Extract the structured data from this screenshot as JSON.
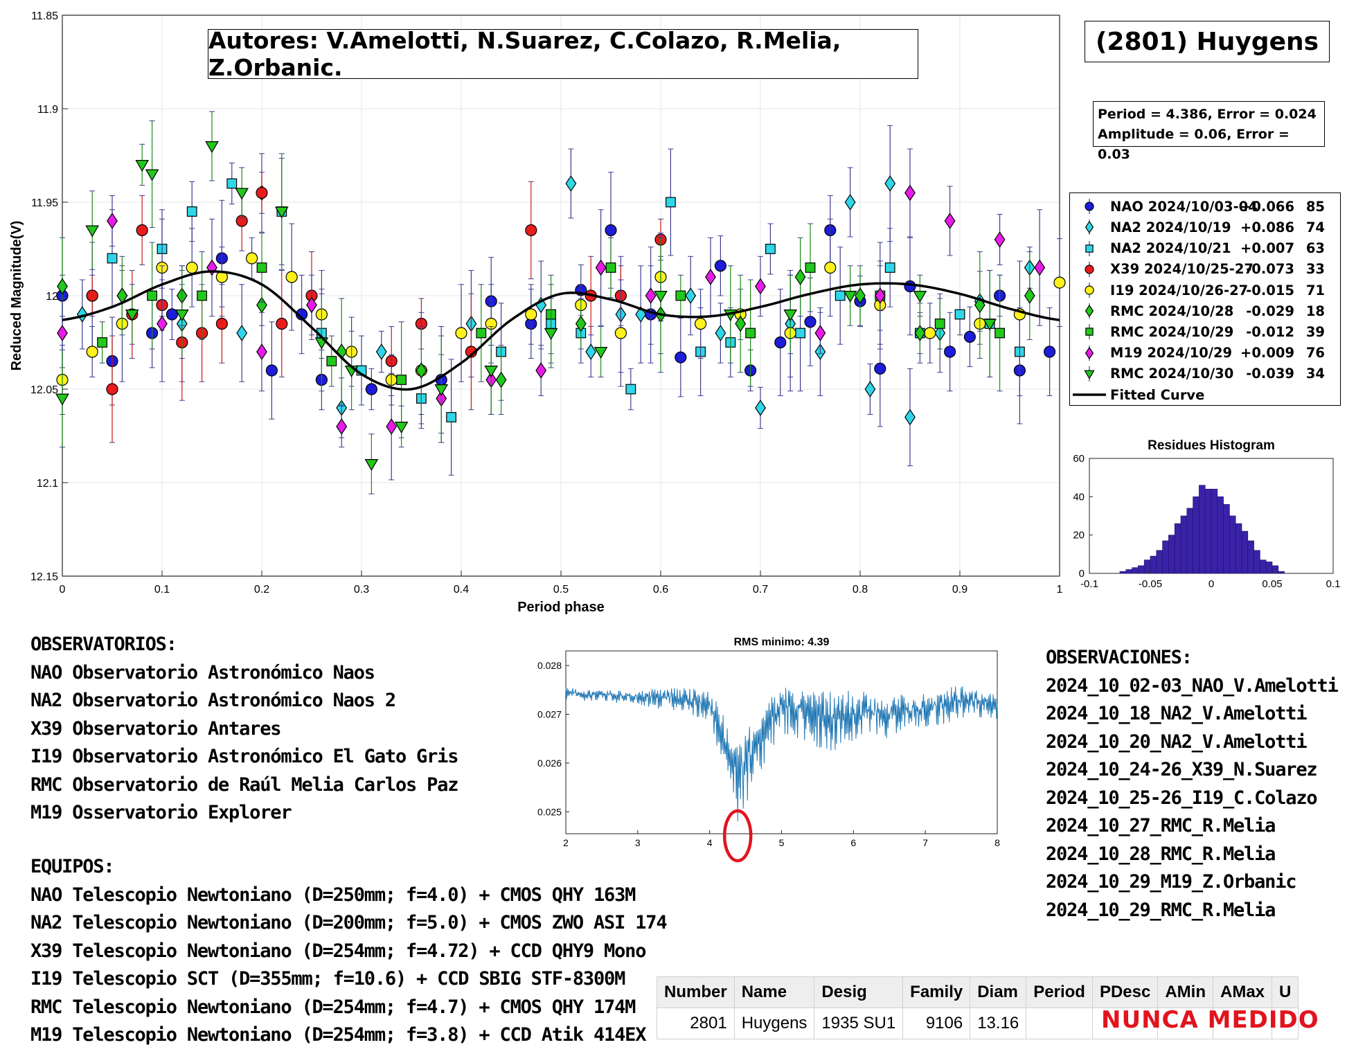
{
  "authors_text": "Autores: V.Amelotti, N.Suarez, C.Colazo, R.Melia, Z.Orbanic.",
  "asteroid_title": "(2801) Huygens",
  "params": {
    "period_line": "Period =  4.386, Error = 0.024",
    "amplitude_line": "Amplitude = 0.06, Error = 0.03"
  },
  "colors": {
    "NAO": "#1c1cd9",
    "NA2a": "#2fd6e8",
    "NA2b": "#2fd6e8",
    "X39": "#e81c1c",
    "I19": "#fff21c",
    "RMC28": "#22c81c",
    "RMC29": "#22c81c",
    "M19": "#e81ce8",
    "RMC30": "#22c81c",
    "curve": "#000000",
    "hist": "#3a22a8",
    "periodogram": "#1f77b4",
    "circle": "#e1141e",
    "never": "#e1141e"
  },
  "legend": [
    {
      "key": "NAO",
      "marker": "circle",
      "name": "NAO 2024/10/03-04",
      "offset": "+0.066",
      "n": "85"
    },
    {
      "key": "NA2a",
      "marker": "diamond",
      "name": "NA2 2024/10/19",
      "offset": "+0.086",
      "n": "74"
    },
    {
      "key": "NA2b",
      "marker": "square",
      "name": "NA2 2024/10/21",
      "offset": "+0.007",
      "n": "63"
    },
    {
      "key": "X39",
      "marker": "circle",
      "name": "X39 2024/10/25-27",
      "offset": "-0.073",
      "n": "33"
    },
    {
      "key": "I19",
      "marker": "circle",
      "name": "I19 2024/10/26-27",
      "offset": "-0.015",
      "n": "71"
    },
    {
      "key": "RMC28",
      "marker": "diamond",
      "name": "RMC 2024/10/28",
      "offset": "-0.029",
      "n": "18"
    },
    {
      "key": "RMC29",
      "marker": "square",
      "name": "RMC 2024/10/29",
      "offset": "-0.012",
      "n": "39"
    },
    {
      "key": "M19",
      "marker": "diamond",
      "name": "M19 2024/10/29",
      "offset": "+0.009",
      "n": "76"
    },
    {
      "key": "RMC30",
      "marker": "triangle",
      "name": "RMC 2024/10/30",
      "offset": "-0.039",
      "n": "34"
    },
    {
      "key": "curve",
      "marker": "line",
      "name": "Fitted Curve",
      "offset": "",
      "n": ""
    }
  ],
  "chart_data": [
    {
      "type": "scatter",
      "title": "",
      "xlabel": "Period phase",
      "ylabel": "Reduced Magnitude(V)",
      "xlim": [
        0,
        1
      ],
      "ylim": [
        11.85,
        12.15
      ],
      "y_reversed": true,
      "grid": true,
      "legend_position": "right",
      "xticks": [
        "0",
        "0.1",
        "0.2",
        "0.3",
        "0.4",
        "0.5",
        "0.6",
        "0.7",
        "0.8",
        "0.9",
        "1"
      ],
      "yticks": [
        "11.85",
        "11.9",
        "11.95",
        "12",
        "12.05",
        "12.1",
        "12.15"
      ],
      "fitted_curve": {
        "name": "Fitted Curve",
        "x": [
          0,
          0.05,
          0.1,
          0.15,
          0.2,
          0.25,
          0.3,
          0.35,
          0.4,
          0.45,
          0.5,
          0.55,
          0.6,
          0.65,
          0.7,
          0.75,
          0.8,
          0.85,
          0.9,
          0.95,
          1
        ],
        "y": [
          12.013,
          12.006,
          11.994,
          11.987,
          11.994,
          12.017,
          12.042,
          12.05,
          12.036,
          12.013,
          11.999,
          12.002,
          12.01,
          12.011,
          12.006,
          11.999,
          11.994,
          11.994,
          11.999,
          12.007,
          12.013
        ]
      },
      "series": [
        {
          "name": "NAO 2024/10/03-04",
          "key": "NAO",
          "marker": "circle",
          "x": [
            0.0,
            0.03,
            0.05,
            0.09,
            0.11,
            0.16,
            0.21,
            0.24,
            0.26,
            0.31,
            0.38,
            0.43,
            0.47,
            0.52,
            0.55,
            0.59,
            0.62,
            0.66,
            0.69,
            0.72,
            0.75,
            0.77,
            0.8,
            0.82,
            0.85,
            0.89,
            0.91,
            0.94,
            0.96,
            0.99
          ],
          "y": [
            12.0,
            12.0,
            12.035,
            12.02,
            12.01,
            11.98,
            12.04,
            12.01,
            12.045,
            12.05,
            12.045,
            12.003,
            12.015,
            11.997,
            11.965,
            12.01,
            12.033,
            11.984,
            12.04,
            12.025,
            12.014,
            11.965,
            12.003,
            12.039,
            11.995,
            12.03,
            12.022,
            12.0,
            12.04,
            12.03
          ]
        },
        {
          "name": "NA2 2024/10/19",
          "key": "NA2a",
          "marker": "diamond",
          "x": [
            0.02,
            0.06,
            0.12,
            0.18,
            0.2,
            0.28,
            0.32,
            0.41,
            0.48,
            0.51,
            0.53,
            0.56,
            0.58,
            0.63,
            0.66,
            0.7,
            0.73,
            0.76,
            0.79,
            0.81,
            0.83,
            0.85,
            0.88,
            0.92,
            0.97
          ],
          "y": [
            12.01,
            12.0,
            12.015,
            12.02,
            11.945,
            12.06,
            12.03,
            12.015,
            12.005,
            11.94,
            12.03,
            12.01,
            12.01,
            12.0,
            12.02,
            12.06,
            12.015,
            12.03,
            11.95,
            12.05,
            11.94,
            12.065,
            12.02,
            12.003,
            11.985
          ]
        },
        {
          "name": "NA2 2024/10/21",
          "key": "NA2b",
          "marker": "square",
          "x": [
            0.05,
            0.1,
            0.13,
            0.17,
            0.22,
            0.26,
            0.3,
            0.36,
            0.39,
            0.44,
            0.49,
            0.52,
            0.57,
            0.61,
            0.64,
            0.67,
            0.71,
            0.74,
            0.78,
            0.83,
            0.86,
            0.9,
            0.93,
            0.96
          ],
          "y": [
            11.98,
            11.975,
            11.955,
            11.94,
            11.955,
            12.02,
            12.04,
            12.055,
            12.065,
            12.03,
            12.015,
            12.02,
            12.05,
            11.95,
            12.03,
            12.025,
            11.975,
            12.02,
            12.0,
            11.985,
            12.02,
            12.01,
            12.015,
            12.03
          ]
        },
        {
          "name": "X39 2024/10/25-27",
          "key": "X39",
          "marker": "circle",
          "x": [
            0.03,
            0.05,
            0.07,
            0.08,
            0.1,
            0.12,
            0.14,
            0.16,
            0.18,
            0.2,
            0.22,
            0.25,
            0.33,
            0.36,
            0.41,
            0.47,
            0.53,
            0.56,
            0.6
          ],
          "y": [
            12.0,
            12.05,
            12.01,
            11.965,
            12.005,
            12.025,
            12.02,
            12.015,
            11.96,
            11.945,
            12.015,
            12.0,
            12.035,
            12.015,
            12.03,
            11.965,
            12.0,
            12.0,
            11.97
          ]
        },
        {
          "name": "I19 2024/10/26-27",
          "key": "I19",
          "marker": "circle",
          "x": [
            0.0,
            0.03,
            0.06,
            0.1,
            0.13,
            0.16,
            0.19,
            0.23,
            0.26,
            0.29,
            0.33,
            0.36,
            0.4,
            0.43,
            0.47,
            0.52,
            0.56,
            0.6,
            0.64,
            0.68,
            0.73,
            0.77,
            0.82,
            0.87,
            0.92,
            0.96,
            1.0
          ],
          "y": [
            12.045,
            12.03,
            12.015,
            11.985,
            11.985,
            11.99,
            11.98,
            11.99,
            12.01,
            12.03,
            12.045,
            12.04,
            12.02,
            12.015,
            12.01,
            12.005,
            12.02,
            11.99,
            12.015,
            12.01,
            12.02,
            11.985,
            12.005,
            12.02,
            12.015,
            12.01,
            11.993
          ]
        },
        {
          "name": "RMC 2024/10/28",
          "key": "RMC28",
          "marker": "diamond",
          "x": [
            0.0,
            0.06,
            0.12,
            0.2,
            0.28,
            0.36,
            0.44,
            0.52,
            0.6,
            0.68,
            0.74,
            0.8,
            0.86,
            0.92,
            0.97
          ],
          "y": [
            11.995,
            12.0,
            12.0,
            12.005,
            12.03,
            12.04,
            12.045,
            12.015,
            12.01,
            12.015,
            11.99,
            12.0,
            12.02,
            12.005,
            12.0
          ]
        },
        {
          "name": "RMC 2024/10/29",
          "key": "RMC29",
          "marker": "square",
          "x": [
            0.04,
            0.09,
            0.14,
            0.2,
            0.27,
            0.34,
            0.42,
            0.49,
            0.55,
            0.62,
            0.69,
            0.75,
            0.82,
            0.88,
            0.94
          ],
          "y": [
            12.025,
            12.0,
            12.0,
            11.985,
            12.035,
            12.045,
            12.02,
            12.01,
            11.985,
            12.0,
            12.02,
            11.985,
            12.0,
            12.015,
            12.02
          ]
        },
        {
          "name": "M19 2024/10/29",
          "key": "M19",
          "marker": "diamond",
          "x": [
            0.0,
            0.05,
            0.1,
            0.15,
            0.2,
            0.25,
            0.28,
            0.33,
            0.38,
            0.43,
            0.48,
            0.54,
            0.59,
            0.65,
            0.7,
            0.76,
            0.82,
            0.85,
            0.89,
            0.94,
            0.98
          ],
          "y": [
            12.02,
            11.96,
            12.015,
            11.985,
            12.03,
            12.005,
            12.07,
            12.07,
            12.055,
            12.045,
            12.04,
            11.985,
            12.0,
            11.99,
            11.995,
            12.02,
            12.0,
            11.945,
            11.96,
            11.97,
            11.985
          ]
        },
        {
          "name": "RMC 2024/10/30",
          "key": "RMC30",
          "marker": "triangle",
          "x": [
            0.0,
            0.03,
            0.07,
            0.08,
            0.09,
            0.12,
            0.15,
            0.18,
            0.22,
            0.26,
            0.29,
            0.31,
            0.34,
            0.38,
            0.43,
            0.49,
            0.54,
            0.6,
            0.67,
            0.73,
            0.79,
            0.86,
            0.93
          ],
          "y": [
            12.055,
            11.965,
            12.01,
            11.93,
            11.935,
            12.01,
            11.92,
            11.945,
            11.955,
            12.025,
            12.04,
            12.09,
            12.07,
            12.05,
            12.04,
            12.02,
            12.03,
            12.0,
            12.01,
            12.01,
            12.0,
            12.0,
            12.015
          ]
        }
      ]
    },
    {
      "type": "bar",
      "title": "Residues Histogram",
      "xlabel": "",
      "ylabel": "",
      "xlim": [
        -0.1,
        0.1
      ],
      "ylim": [
        0,
        60
      ],
      "xticks": [
        "-0.1",
        "-0.05",
        "0",
        "0.05",
        "0.1"
      ],
      "yticks": [
        "0",
        "20",
        "40",
        "60"
      ],
      "bin_width": 0.005,
      "bin_centers": [
        -0.0725,
        -0.0675,
        -0.0625,
        -0.0575,
        -0.0525,
        -0.0475,
        -0.0425,
        -0.0375,
        -0.0325,
        -0.0275,
        -0.0225,
        -0.0175,
        -0.0125,
        -0.0075,
        -0.0025,
        0.0025,
        0.0075,
        0.0125,
        0.0175,
        0.0225,
        0.0275,
        0.0325,
        0.0375,
        0.0425,
        0.0475,
        0.0525,
        0.0575
      ],
      "values": [
        1,
        2,
        3,
        4,
        7,
        9,
        12,
        17,
        20,
        26,
        30,
        34,
        40,
        46,
        44,
        44,
        40,
        36,
        30,
        26,
        22,
        17,
        12,
        7,
        6,
        4,
        1
      ]
    },
    {
      "type": "line",
      "title": "RMS minimo: 4.39",
      "xlabel": "",
      "ylabel": "",
      "xlim": [
        2,
        8
      ],
      "ylim": [
        0.02455,
        0.0283
      ],
      "xticks": [
        "2",
        "3",
        "4",
        "5",
        "6",
        "7",
        "8"
      ],
      "yticks": [
        "0.025",
        "0.026",
        "0.027",
        "0.028"
      ],
      "minimum": {
        "x": 4.39,
        "y": 0.0248
      },
      "envelope": {
        "x": [
          2,
          2.5,
          3,
          3.5,
          4,
          4.39,
          5,
          5.5,
          6,
          6.5,
          7,
          7.5,
          8
        ],
        "top": [
          0.02755,
          0.0275,
          0.0275,
          0.02755,
          0.0275,
          0.0265,
          0.0276,
          0.0275,
          0.0275,
          0.0274,
          0.02745,
          0.0276,
          0.02745
        ],
        "bottom": [
          0.0273,
          0.02725,
          0.0272,
          0.02705,
          0.0268,
          0.0248,
          0.0266,
          0.0262,
          0.0263,
          0.0265,
          0.0267,
          0.0269,
          0.0269
        ]
      }
    }
  ],
  "observatorios": {
    "heading": "OBSERVATORIOS:",
    "lines": [
      "NAO Observatorio Astronómico Naos",
      "NA2 Observatorio Astronómico Naos 2",
      "X39 Observatorio Antares",
      "I19 Observatorio Astronómico El Gato Gris",
      "RMC Observatorio de Raúl Melia Carlos Paz",
      "M19 Osservatorio Explorer"
    ]
  },
  "equipos": {
    "heading": "EQUIPOS:",
    "lines": [
      "NAO Telescopio Newtoniano (D=250mm; f=4.0) + CMOS QHY 163M",
      "NA2 Telescopio Newtoniano (D=200mm; f=5.0) + CMOS ZWO ASI 174",
      "X39 Telescopio Newtoniano (D=254mm; f=4.72) + CCD QHY9 Mono",
      "I19 Telescopio SCT (D=355mm; f=10.6) + CCD SBIG STF-8300M",
      "RMC Telescopio Newtoniano (D=254mm; f=4.7) + CMOS QHY 174M",
      "M19 Telescopio Newtoniano (D=254mm; f=3.8) + CCD Atik 414EX"
    ]
  },
  "observaciones": {
    "heading": "OBSERVACIONES:",
    "lines": [
      "2024_10_02-03_NAO_V.Amelotti",
      "2024_10_18_NA2_V.Amelotti",
      "2024_10_20_NA2_V.Amelotti",
      "2024_10_24-26_X39_N.Suarez",
      "2024_10_25-26_I19_C.Colazo",
      "2024_10_27_RMC_R.Melia",
      "2024_10_28_RMC_R.Melia",
      "2024_10_29_M19_Z.Orbanic",
      "2024_10_29_RMC_R.Melia"
    ]
  },
  "info_table": {
    "headers": [
      "Number",
      "Name",
      "Desig",
      "Family",
      "Diam",
      "Period",
      "PDesc",
      "AMin",
      "AMax",
      "U"
    ],
    "row": [
      "2801",
      "Huygens",
      "1935 SU1",
      "9106",
      "13.16",
      "",
      "",
      "",
      "",
      ""
    ],
    "status": "NUNCA MEDIDO"
  }
}
